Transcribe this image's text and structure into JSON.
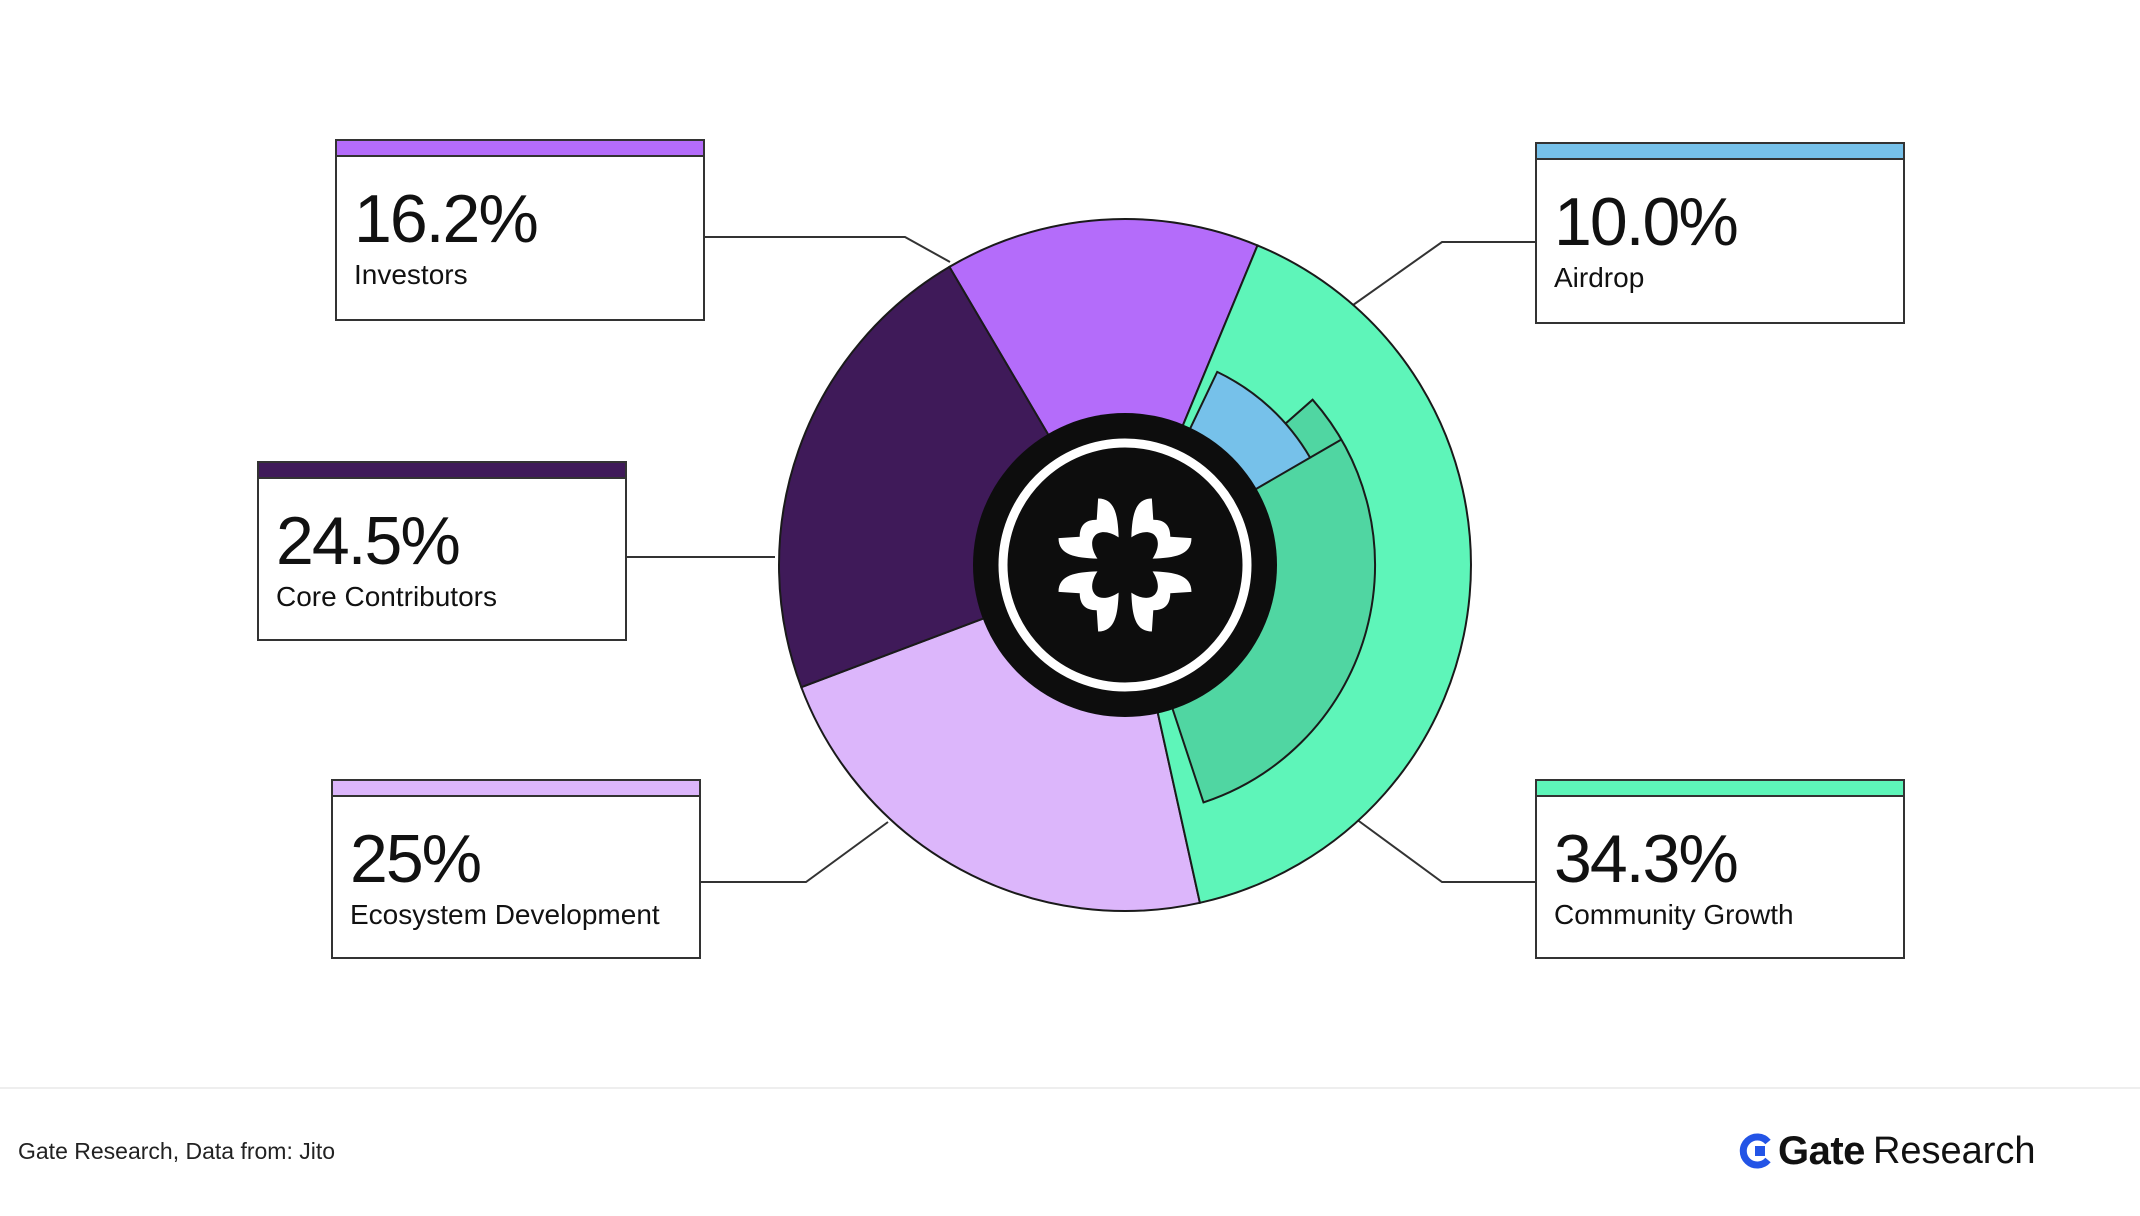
{
  "chart_data": {
    "type": "pie",
    "slices": [
      {
        "key": "investors",
        "label": "Investors",
        "value": 16.2,
        "display": "16.2%",
        "color": "#b46cfa"
      },
      {
        "key": "airdrop",
        "label": "Airdrop",
        "value": 10.0,
        "display": "10.0%",
        "color": "#76c1ea"
      },
      {
        "key": "community",
        "label": "Community Growth",
        "value": 34.3,
        "display": "34.3%",
        "color": "#5ef5b9"
      },
      {
        "key": "ecosystem",
        "label": "Ecosystem Development",
        "value": 25,
        "display": "25%",
        "color": "#dcb6fb"
      },
      {
        "key": "core",
        "label": "Core Contributors",
        "value": 24.5,
        "display": "24.5%",
        "color": "#3f1a59"
      }
    ],
    "center_logo": "jito-logo-icon"
  },
  "footer": {
    "source": "Gate Research, Data from:  Jito",
    "brand_name": "Gate",
    "brand_sub": "Research",
    "brand_icon": "gate-logo-icon",
    "brand_color": "#2354e6"
  }
}
